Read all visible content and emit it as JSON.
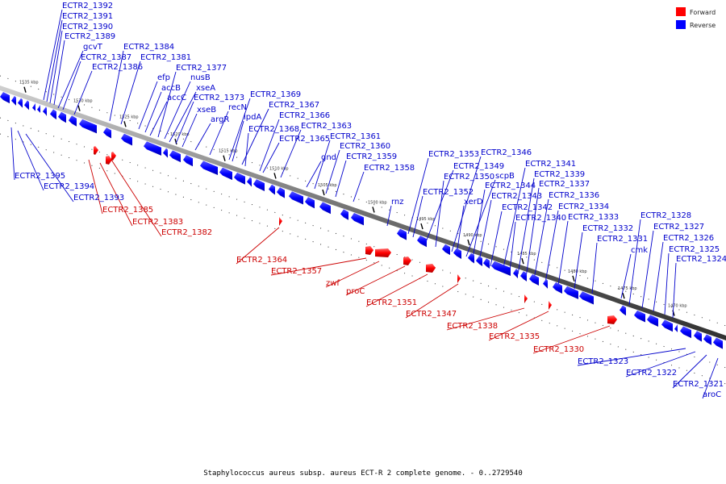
{
  "caption": "Staphylococcus aureus subsp. aureus ECT-R 2 complete genome. - 0..2729540",
  "legend": [
    {
      "label": "Forward",
      "color": "#ff0000"
    },
    {
      "label": "Reverse",
      "color": "#0000ff"
    }
  ],
  "colors": {
    "forward": "#ff0000",
    "reverse": "#0000ff",
    "forward_label": "#cc0000",
    "reverse_label": "#0000cc",
    "backbone": "#606060"
  },
  "ticks": [
    "1535 kbp",
    "1530 kbp",
    "1525 kbp",
    "1520 kbp",
    "1515 kbp",
    "1510 kbp",
    "1505 kbp",
    "1500 kbp",
    "1495 kbp",
    "1490 kbp",
    "1485 kbp",
    "1480 kbp",
    "1475 kbp",
    "1470 kbp"
  ],
  "reverse_labels_above": [
    "ECTR2_1392",
    "ECTR2_1391",
    "ECTR2_1390",
    "ECTR2_1389",
    "gcvT",
    "ECTR2_1387",
    "ECTR2_1386",
    "ECTR2_1384",
    "ECTR2_1381",
    "efp",
    "accB",
    "accC",
    "ECTR2_1377",
    "nusB",
    "xseA",
    "ECTR2_1373",
    "xseB",
    "argR",
    "recN",
    "ECTR2_1369",
    "lpdA",
    "ECTR2_1367",
    "ECTR2_1368",
    "ECTR2_1366",
    "ECTR2_1365",
    "ECTR2_1363",
    "gnd",
    "ECTR2_1361",
    "ECTR2_1360",
    "ECTR2_1359",
    "ECTR2_1358",
    "rnz",
    "ECTR2_1353",
    "ECTR2_1352",
    "ECTR2_1349",
    "ECTR2_1350",
    "ECTR2_1346",
    "scpB",
    "xerD",
    "ECTR2_1344",
    "ECTR2_1343",
    "ECTR2_1342",
    "ECTR2_1341",
    "ECTR2_1340",
    "ECTR2_1339",
    "ECTR2_1337",
    "ECTR2_1336",
    "ECTR2_1334",
    "ECTR2_1333",
    "ECTR2_1332",
    "ECTR2_1331",
    "cmk",
    "ECTR2_1328",
    "ECTR2_1327",
    "ECTR2_1326",
    "ECTR2_1325",
    "ECTR2_1324"
  ],
  "reverse_labels_below": [
    "ECTR2_1395",
    "ECTR2_1394",
    "ECTR2_1393",
    "ECTR2_1323",
    "ECTR2_1322",
    "ECTR2_1321",
    "aroC"
  ],
  "forward_labels": [
    "ECTR2_1385",
    "ECTR2_1383",
    "ECTR2_1382",
    "ECTR2_1364",
    "ECTR2_1357",
    "zwf",
    "proC",
    "ECTR2_1351",
    "ECTR2_1347",
    "ECTR2_1338",
    "ECTR2_1335",
    "ECTR2_1330"
  ]
}
